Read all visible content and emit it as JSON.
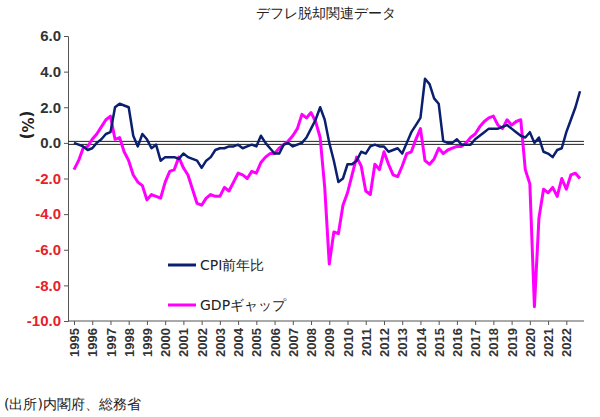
{
  "chart_data": {
    "type": "line",
    "title": "デフレ脱却関連データ",
    "y_label": "(%)",
    "source": "(出所)内閣府、総務省",
    "categories": [
      "1995",
      null,
      null,
      null,
      "1996",
      null,
      null,
      null,
      "1997",
      null,
      null,
      null,
      "1998",
      null,
      null,
      null,
      "1999",
      null,
      null,
      null,
      "2000",
      null,
      null,
      null,
      "2001",
      null,
      null,
      null,
      "2002",
      null,
      null,
      null,
      "2003",
      null,
      null,
      null,
      "2004",
      null,
      null,
      null,
      "2005",
      null,
      null,
      null,
      "2006",
      null,
      null,
      null,
      "2007",
      null,
      null,
      null,
      "2008",
      null,
      null,
      null,
      "2009",
      null,
      null,
      null,
      "2010",
      null,
      null,
      null,
      "2011",
      null,
      null,
      null,
      "2012",
      null,
      null,
      null,
      "2013",
      null,
      null,
      null,
      "2014",
      null,
      null,
      null,
      "2015",
      null,
      null,
      null,
      "2016",
      null,
      null,
      null,
      "2017",
      null,
      null,
      null,
      "2018",
      null,
      null,
      null,
      "2019",
      null,
      null,
      null,
      "2020",
      null,
      null,
      null,
      "2021",
      null,
      null,
      null,
      "2022",
      null,
      null,
      null
    ],
    "series": [
      {
        "name": "CPI前年比",
        "color": "#0a1f6e",
        "values": [
          0.0,
          -0.1,
          -0.2,
          -0.4,
          -0.3,
          0.0,
          0.2,
          0.5,
          0.6,
          2.0,
          2.2,
          2.1,
          2.0,
          0.4,
          -0.2,
          0.5,
          0.2,
          -0.3,
          -0.1,
          -1.0,
          -0.8,
          -0.8,
          -0.8,
          -0.9,
          -0.6,
          -0.8,
          -0.9,
          -1.0,
          -1.4,
          -1.0,
          -0.8,
          -0.4,
          -0.3,
          -0.3,
          -0.2,
          -0.2,
          -0.1,
          -0.3,
          -0.2,
          -0.1,
          -0.2,
          0.4,
          0.0,
          -0.3,
          -0.6,
          -0.6,
          -0.1,
          0.0,
          -0.2,
          -0.1,
          0.0,
          0.3,
          0.8,
          1.3,
          2.0,
          1.3,
          0.0,
          -1.0,
          -2.2,
          -2.0,
          -1.2,
          -1.2,
          -1.0,
          -0.5,
          -0.6,
          -0.2,
          -0.1,
          -0.2,
          -0.2,
          -0.5,
          -0.4,
          -0.3,
          -0.6,
          0.0,
          0.6,
          1.0,
          1.4,
          3.6,
          3.3,
          2.5,
          2.2,
          0.1,
          0.0,
          0.0,
          0.2,
          -0.1,
          -0.1,
          -0.1,
          0.2,
          0.4,
          0.6,
          0.8,
          0.8,
          0.8,
          0.9,
          1.0,
          0.8,
          0.6,
          0.4,
          0.3,
          0.6,
          0.0,
          0.3,
          -0.5,
          -0.6,
          -0.8,
          -0.4,
          -0.3,
          0.6,
          1.3,
          2.0,
          2.9
        ]
      },
      {
        "name": "GDPギャップ",
        "color": "#ff00ff",
        "values": [
          -1.5,
          -1.0,
          -0.3,
          -0.2,
          0.2,
          0.5,
          0.9,
          1.3,
          1.5,
          0.2,
          0.3,
          -0.5,
          -1.0,
          -1.8,
          -2.2,
          -2.4,
          -3.2,
          -2.9,
          -3.0,
          -3.1,
          -2.2,
          -1.6,
          -1.5,
          -0.8,
          -1.4,
          -1.8,
          -2.6,
          -3.4,
          -3.5,
          -3.1,
          -2.9,
          -3.0,
          -3.0,
          -2.5,
          -2.7,
          -2.2,
          -1.7,
          -1.8,
          -2.0,
          -1.6,
          -1.7,
          -1.1,
          -0.8,
          -0.6,
          -0.6,
          -0.3,
          -0.1,
          0.1,
          0.4,
          0.8,
          1.6,
          1.4,
          1.7,
          1.2,
          0.3,
          -2.5,
          -6.8,
          -5.0,
          -5.1,
          -3.5,
          -2.8,
          -1.8,
          -0.8,
          -1.3,
          -2.7,
          -2.9,
          -1.2,
          -1.5,
          -0.5,
          -1.2,
          -1.8,
          -1.9,
          -1.3,
          -0.6,
          -0.5,
          0.2,
          0.8,
          -1.0,
          -1.2,
          -0.9,
          -0.3,
          -0.6,
          -0.4,
          -0.3,
          -0.2,
          -0.2,
          0.0,
          0.3,
          0.5,
          0.9,
          1.2,
          1.4,
          1.5,
          1.0,
          0.8,
          1.3,
          1.0,
          1.2,
          1.3,
          -1.5,
          -2.3,
          -9.2,
          -4.2,
          -2.6,
          -2.8,
          -2.5,
          -3.0,
          -2.0,
          -2.6,
          -1.8,
          -1.7,
          -2.0
        ]
      }
    ],
    "ylim": [
      -10,
      6
    ],
    "yticks": [
      {
        "value": -10,
        "label": "-10.0"
      },
      {
        "value": -8,
        "label": "-8.0"
      },
      {
        "value": -6,
        "label": "-6.0"
      },
      {
        "value": -4,
        "label": "-4.0"
      },
      {
        "value": -2,
        "label": "-2.0"
      },
      {
        "value": 0,
        "label": "0.0"
      },
      {
        "value": 2,
        "label": "2.0"
      },
      {
        "value": 4,
        "label": "4.0"
      },
      {
        "value": 6,
        "label": "6.0"
      }
    ],
    "grid": false,
    "legend": "lower left"
  }
}
